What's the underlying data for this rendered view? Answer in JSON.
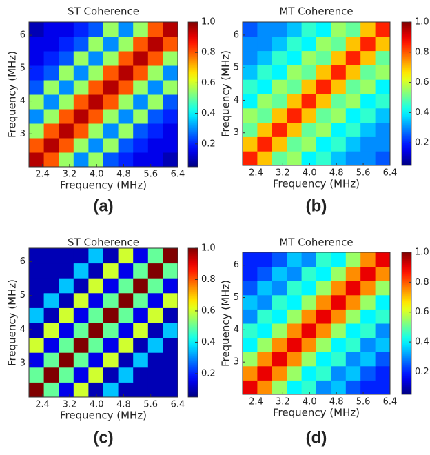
{
  "chart_data": [
    {
      "type": "heatmap",
      "title": "ST Coherence",
      "xlabel": "Frequency (MHz)",
      "ylabel": "Frequency (MHz)",
      "panel_label": "(a)",
      "colormap": "jet",
      "xlim": [
        2.0,
        6.4
      ],
      "ylim": [
        2.0,
        6.4
      ],
      "clim": [
        0.05,
        1.0
      ],
      "xticks": [
        2.4,
        3.2,
        {
          "value": 4,
          "label": "4.0"
        },
        4.8,
        5.6,
        6.4
      ],
      "yticks": [
        3,
        4,
        5,
        6
      ],
      "cticks": [
        0.2,
        0.4,
        0.6,
        0.8,
        {
          "value": 1,
          "label": "1.0"
        }
      ],
      "z": [
        [
          0.95,
          0.8,
          0.55,
          0.3,
          0.55,
          0.25,
          0.2,
          0.15,
          0.15,
          0.1
        ],
        [
          0.8,
          0.95,
          0.8,
          0.55,
          0.3,
          0.55,
          0.25,
          0.2,
          0.15,
          0.15
        ],
        [
          0.55,
          0.8,
          0.95,
          0.8,
          0.55,
          0.3,
          0.55,
          0.25,
          0.2,
          0.15
        ],
        [
          0.3,
          0.55,
          0.8,
          0.95,
          0.8,
          0.55,
          0.3,
          0.55,
          0.25,
          0.2
        ],
        [
          0.55,
          0.3,
          0.55,
          0.8,
          0.95,
          0.8,
          0.55,
          0.3,
          0.55,
          0.25
        ],
        [
          0.25,
          0.55,
          0.3,
          0.55,
          0.8,
          0.95,
          0.8,
          0.55,
          0.3,
          0.55
        ],
        [
          0.2,
          0.25,
          0.55,
          0.3,
          0.55,
          0.8,
          0.95,
          0.8,
          0.55,
          0.3
        ],
        [
          0.15,
          0.2,
          0.25,
          0.55,
          0.3,
          0.55,
          0.8,
          0.95,
          0.8,
          0.55
        ],
        [
          0.15,
          0.15,
          0.2,
          0.25,
          0.55,
          0.3,
          0.55,
          0.8,
          0.95,
          0.8
        ],
        [
          0.1,
          0.15,
          0.15,
          0.2,
          0.25,
          0.55,
          0.3,
          0.55,
          0.8,
          0.95
        ]
      ]
    },
    {
      "type": "heatmap",
      "title": "MT Coherence",
      "xlabel": "Frequency (MHz)",
      "ylabel": "Frequency (MHz)",
      "panel_label": "(b)",
      "colormap": "jet",
      "xlim": [
        2.0,
        6.4
      ],
      "ylim": [
        2.0,
        6.4
      ],
      "clim": [
        0.05,
        1.0
      ],
      "xticks": [
        2.4,
        3.2,
        {
          "value": 4,
          "label": "4.0"
        },
        4.8,
        5.6,
        6.4
      ],
      "yticks": [
        3,
        4,
        5,
        6
      ],
      "cticks": [
        0.2,
        0.4,
        0.6,
        0.8,
        {
          "value": 1,
          "label": "1.0"
        }
      ],
      "z": [
        [
          0.85,
          0.7,
          0.5,
          0.55,
          0.4,
          0.45,
          0.35,
          0.3,
          0.3,
          0.25
        ],
        [
          0.7,
          0.85,
          0.7,
          0.5,
          0.55,
          0.4,
          0.45,
          0.35,
          0.3,
          0.3
        ],
        [
          0.5,
          0.7,
          0.85,
          0.7,
          0.5,
          0.55,
          0.4,
          0.45,
          0.35,
          0.3
        ],
        [
          0.55,
          0.5,
          0.7,
          0.85,
          0.7,
          0.5,
          0.55,
          0.4,
          0.45,
          0.35
        ],
        [
          0.4,
          0.55,
          0.5,
          0.7,
          0.85,
          0.7,
          0.5,
          0.55,
          0.4,
          0.45
        ],
        [
          0.45,
          0.4,
          0.55,
          0.5,
          0.7,
          0.85,
          0.7,
          0.5,
          0.55,
          0.4
        ],
        [
          0.35,
          0.45,
          0.4,
          0.55,
          0.5,
          0.7,
          0.85,
          0.7,
          0.5,
          0.55
        ],
        [
          0.3,
          0.35,
          0.45,
          0.4,
          0.55,
          0.5,
          0.7,
          0.85,
          0.7,
          0.5
        ],
        [
          0.3,
          0.3,
          0.35,
          0.45,
          0.4,
          0.55,
          0.5,
          0.7,
          0.85,
          0.7
        ],
        [
          0.25,
          0.3,
          0.3,
          0.35,
          0.45,
          0.4,
          0.55,
          0.5,
          0.7,
          0.85
        ]
      ]
    },
    {
      "type": "heatmap",
      "title": "ST Coherence",
      "xlabel": "Frequency (MHz)",
      "ylabel": "Frequency (MHz)",
      "panel_label": "(c)",
      "colormap": "jet",
      "xlim": [
        2.0,
        6.4
      ],
      "ylim": [
        2.0,
        6.4
      ],
      "clim": [
        0.05,
        1.0
      ],
      "xticks": [
        2.4,
        3.2,
        {
          "value": 4,
          "label": "4.0"
        },
        4.8,
        5.6,
        6.4
      ],
      "yticks": [
        3,
        4,
        5,
        6
      ],
      "cticks": [
        0.2,
        0.4,
        0.6,
        0.8,
        {
          "value": 1,
          "label": "1.0"
        }
      ],
      "z": [
        [
          1,
          0.5,
          0.15,
          0.6,
          0.1,
          0.35,
          0.1,
          0.1,
          0.1,
          0.1
        ],
        [
          0.5,
          1,
          0.5,
          0.15,
          0.6,
          0.1,
          0.35,
          0.1,
          0.1,
          0.1
        ],
        [
          0.15,
          0.5,
          1,
          0.5,
          0.15,
          0.6,
          0.1,
          0.35,
          0.1,
          0.1
        ],
        [
          0.6,
          0.15,
          0.5,
          1,
          0.5,
          0.15,
          0.6,
          0.1,
          0.35,
          0.1
        ],
        [
          0.1,
          0.6,
          0.15,
          0.5,
          1,
          0.5,
          0.15,
          0.6,
          0.1,
          0.35
        ],
        [
          0.35,
          0.1,
          0.6,
          0.15,
          0.5,
          1,
          0.5,
          0.15,
          0.6,
          0.1
        ],
        [
          0.1,
          0.35,
          0.1,
          0.6,
          0.15,
          0.5,
          1,
          0.5,
          0.15,
          0.6
        ],
        [
          0.1,
          0.1,
          0.35,
          0.1,
          0.6,
          0.15,
          0.5,
          1,
          0.5,
          0.15
        ],
        [
          0.1,
          0.1,
          0.1,
          0.35,
          0.1,
          0.6,
          0.15,
          0.5,
          1,
          0.5
        ],
        [
          0.1,
          0.1,
          0.1,
          0.1,
          0.35,
          0.1,
          0.6,
          0.15,
          0.5,
          1
        ]
      ]
    },
    {
      "type": "heatmap",
      "title": "MT Coherence",
      "xlabel": "Frequency (MHz)",
      "ylabel": "Frequency (MHz)",
      "panel_label": "(d)",
      "colormap": "jet",
      "xlim": [
        2.0,
        6.4
      ],
      "ylim": [
        2.0,
        6.4
      ],
      "clim": [
        0.05,
        1.0
      ],
      "xticks": [
        2.4,
        3.2,
        {
          "value": 4,
          "label": "4.0"
        },
        4.8,
        5.6,
        6.4
      ],
      "yticks": [
        3,
        4,
        5,
        6
      ],
      "cticks": [
        0.2,
        0.4,
        0.6,
        0.8,
        {
          "value": 1,
          "label": "1.0"
        }
      ],
      "z": [
        [
          0.9,
          0.75,
          0.55,
          0.4,
          0.45,
          0.3,
          0.35,
          0.25,
          0.2,
          0.2
        ],
        [
          0.75,
          0.9,
          0.75,
          0.55,
          0.4,
          0.45,
          0.3,
          0.35,
          0.25,
          0.2
        ],
        [
          0.55,
          0.75,
          0.9,
          0.75,
          0.55,
          0.4,
          0.45,
          0.3,
          0.35,
          0.25
        ],
        [
          0.4,
          0.55,
          0.75,
          0.9,
          0.75,
          0.55,
          0.4,
          0.45,
          0.3,
          0.35
        ],
        [
          0.45,
          0.4,
          0.55,
          0.75,
          0.9,
          0.75,
          0.55,
          0.4,
          0.45,
          0.3
        ],
        [
          0.3,
          0.45,
          0.4,
          0.55,
          0.75,
          0.9,
          0.75,
          0.55,
          0.4,
          0.45
        ],
        [
          0.35,
          0.3,
          0.45,
          0.4,
          0.55,
          0.75,
          0.9,
          0.75,
          0.55,
          0.4
        ],
        [
          0.25,
          0.35,
          0.3,
          0.45,
          0.4,
          0.55,
          0.75,
          0.9,
          0.75,
          0.55
        ],
        [
          0.2,
          0.25,
          0.35,
          0.3,
          0.45,
          0.4,
          0.55,
          0.75,
          0.9,
          0.75
        ],
        [
          0.2,
          0.2,
          0.25,
          0.35,
          0.3,
          0.45,
          0.4,
          0.55,
          0.75,
          0.9
        ]
      ]
    }
  ]
}
